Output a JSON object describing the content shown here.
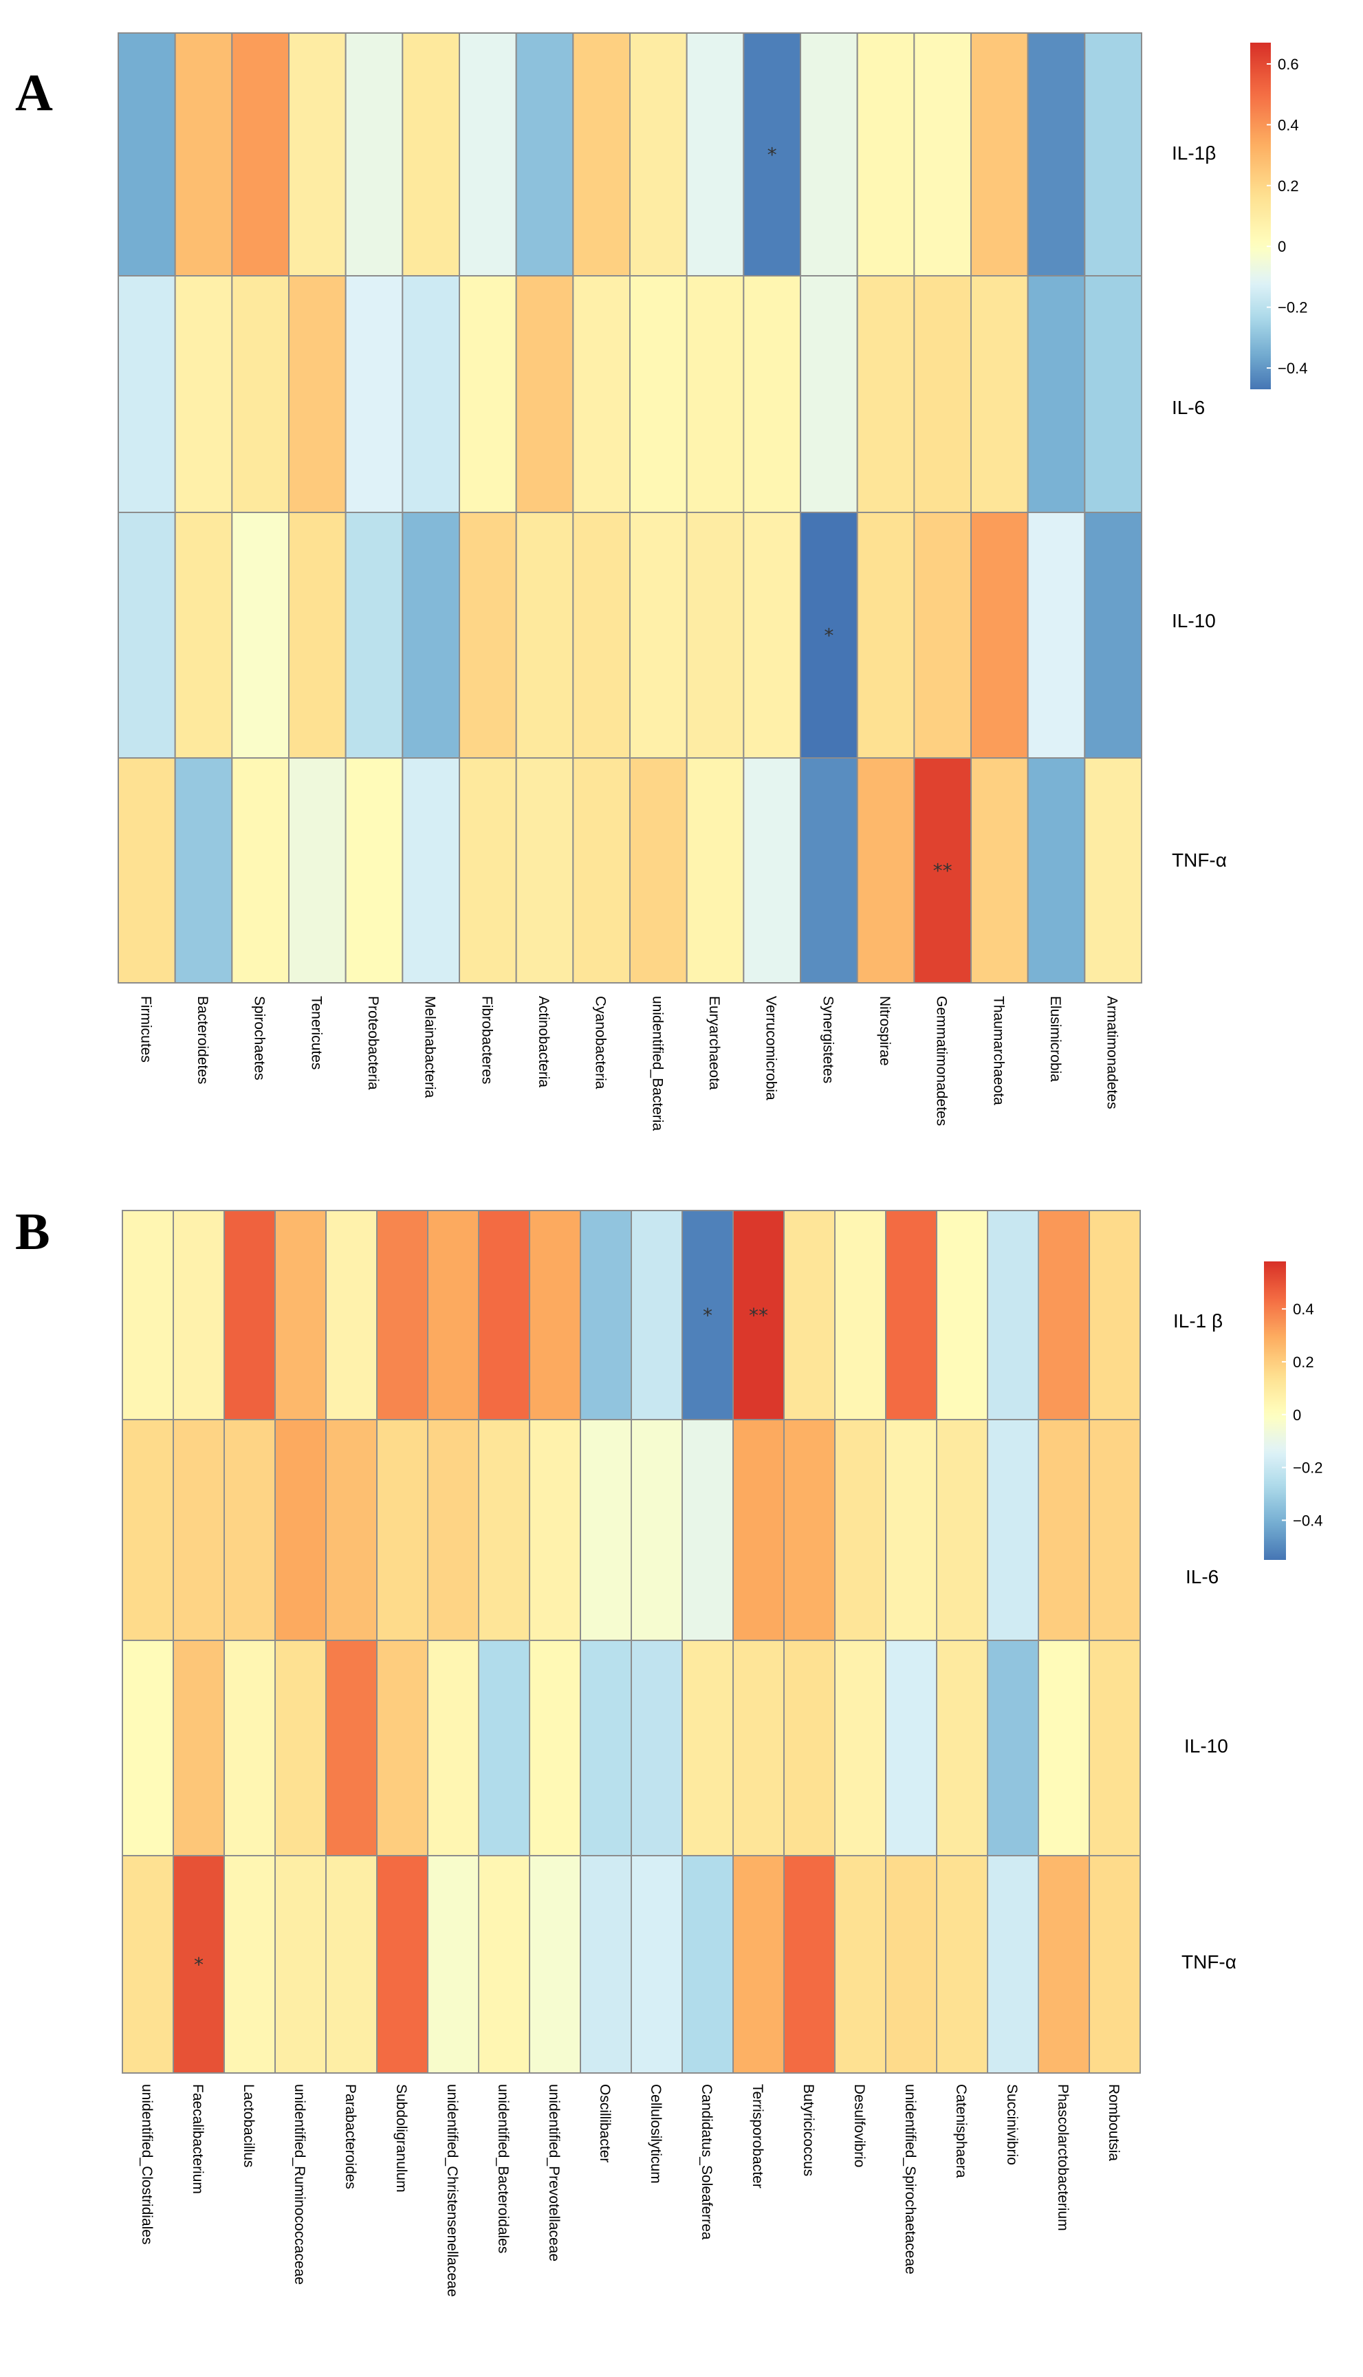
{
  "colors": {
    "scale": [
      "#4575b4",
      "#74add1",
      "#abd9e9",
      "#e0f3f8",
      "#ffffbf",
      "#fee090",
      "#fdae61",
      "#f46d43",
      "#d73027"
    ],
    "grid_line": "#8c8c8c"
  },
  "chart_data": [
    {
      "panel": "A",
      "type": "heatmap",
      "rows": [
        "IL-1β",
        "IL-6",
        "IL-10",
        "TNF-α"
      ],
      "columns": [
        "Firmicutes",
        "Bacteroidetes",
        "Spirochaetes",
        "Tenericutes",
        "Proteobacteria",
        "Melainabacteria",
        "Fibrobacteres",
        "Actinobacteria",
        "Cyanobacteria",
        "unidentified_Bacteria",
        "Euryarchaeota",
        "Verrucomicrobia",
        "Synergistetes",
        "Nitrospirae",
        "Gemmatimonadetes",
        "Thaumarchaeota",
        "Elusimicrobia",
        "Armatimonadetes"
      ],
      "values": [
        [
          -0.35,
          0.28,
          0.38,
          0.1,
          -0.08,
          0.12,
          -0.1,
          -0.3,
          0.22,
          0.1,
          -0.1,
          -0.45,
          -0.08,
          0.04,
          0.03,
          0.25,
          -0.42,
          -0.25
        ],
        [
          -0.15,
          0.08,
          0.12,
          0.24,
          -0.12,
          -0.16,
          0.04,
          0.24,
          0.08,
          0.04,
          0.06,
          0.05,
          -0.08,
          0.14,
          0.16,
          0.14,
          -0.34,
          -0.26
        ],
        [
          -0.18,
          0.12,
          -0.02,
          0.16,
          -0.2,
          -0.32,
          0.2,
          0.12,
          0.14,
          0.08,
          0.1,
          0.08,
          -0.48,
          0.16,
          0.22,
          0.38,
          -0.12,
          -0.38
        ],
        [
          0.16,
          -0.28,
          0.04,
          -0.06,
          0.02,
          -0.14,
          0.12,
          0.1,
          0.14,
          0.2,
          0.06,
          -0.1,
          -0.42,
          0.3,
          0.62,
          0.22,
          -0.34,
          0.1
        ]
      ],
      "significance": [
        [
          "",
          "",
          "",
          "",
          "",
          "",
          "",
          "",
          "",
          "",
          "",
          "*",
          "",
          "",
          "",
          "",
          "",
          ""
        ],
        [
          "",
          "",
          "",
          "",
          "",
          "",
          "",
          "",
          "",
          "",
          "",
          "",
          "",
          "",
          "",
          "",
          "",
          ""
        ],
        [
          "",
          "",
          "",
          "",
          "",
          "",
          "",
          "",
          "",
          "",
          "",
          "",
          "*",
          "",
          "",
          "",
          "",
          ""
        ],
        [
          "",
          "",
          "",
          "",
          "",
          "",
          "",
          "",
          "",
          "",
          "",
          "",
          "",
          "",
          "**",
          "",
          "",
          ""
        ]
      ],
      "legend": {
        "ticks": [
          0.6,
          0.4,
          0.2,
          0,
          -0.2,
          -0.4
        ],
        "tick_labels": [
          "0.6",
          "0.4",
          "0.2",
          "0",
          "−0.2",
          "−0.4"
        ],
        "min": -0.47,
        "max": 0.67
      }
    },
    {
      "panel": "B",
      "type": "heatmap",
      "rows": [
        "IL-1 β",
        "IL-6",
        "IL-10",
        "TNF-α"
      ],
      "columns": [
        "unidentified_Clostridiales",
        "Faecalibacterium",
        "Lactobacillus",
        "unidentified_Ruminococcaceae",
        "Parabacteroides",
        "Subdoligranulum",
        "unidentified_Christensenellaceae",
        "unidentified_Bacteroidales",
        "unidentified_Prevotellaceae",
        "Oscillibacter",
        "Cellulosilyticum",
        "Candidatus_Soleaferrea",
        "Terrisporobacter",
        "Butyricicoccus",
        "Desulfovibrio",
        "unidentified_Spirochaetaceae",
        "Catenisphaera",
        "Succinivibrio",
        "Phascolarctobacterium",
        "Romboutsia"
      ],
      "values": [
        [
          0.04,
          0.06,
          0.46,
          0.26,
          0.06,
          0.38,
          0.3,
          0.44,
          0.3,
          -0.34,
          -0.2,
          -0.52,
          0.56,
          0.12,
          0.04,
          0.44,
          0.02,
          -0.2,
          0.34,
          0.16
        ],
        [
          0.16,
          0.18,
          0.18,
          0.3,
          0.24,
          0.16,
          0.18,
          0.12,
          0.06,
          -0.04,
          -0.04,
          -0.1,
          0.3,
          0.28,
          0.12,
          0.06,
          0.1,
          -0.18,
          0.2,
          0.18
        ],
        [
          0.02,
          0.22,
          0.04,
          0.14,
          0.4,
          0.2,
          0.04,
          -0.26,
          0.03,
          -0.24,
          -0.22,
          0.1,
          0.12,
          0.14,
          0.06,
          -0.16,
          0.1,
          -0.34,
          0.02,
          0.14
        ],
        [
          0.14,
          0.5,
          0.04,
          0.08,
          0.08,
          0.44,
          -0.03,
          0.04,
          -0.04,
          -0.18,
          -0.16,
          -0.26,
          0.28,
          0.44,
          0.14,
          0.16,
          0.14,
          -0.18,
          0.26,
          0.16
        ]
      ],
      "significance": [
        [
          "",
          "",
          "",
          "",
          "",
          "",
          "",
          "",
          "",
          "",
          "",
          "*",
          "**",
          "",
          "",
          "",
          "",
          "",
          "",
          ""
        ],
        [
          "",
          "",
          "",
          "",
          "",
          "",
          "",
          "",
          "",
          "",
          "",
          "",
          "",
          "",
          "",
          "",
          "",
          "",
          "",
          ""
        ],
        [
          "",
          "",
          "",
          "",
          "",
          "",
          "",
          "",
          "",
          "",
          "",
          "",
          "",
          "",
          "",
          "",
          "",
          "",
          "",
          ""
        ],
        [
          "",
          "*",
          "",
          "",
          "",
          "",
          "",
          "",
          "",
          "",
          "",
          "",
          "",
          "",
          "",
          "",
          "",
          "",
          "",
          ""
        ]
      ],
      "legend": {
        "ticks": [
          0.4,
          0.2,
          0,
          -0.2,
          -0.4
        ],
        "tick_labels": [
          "0.4",
          "0.2",
          "0",
          "−0.2",
          "−0.4"
        ],
        "min": -0.55,
        "max": 0.58
      }
    }
  ]
}
